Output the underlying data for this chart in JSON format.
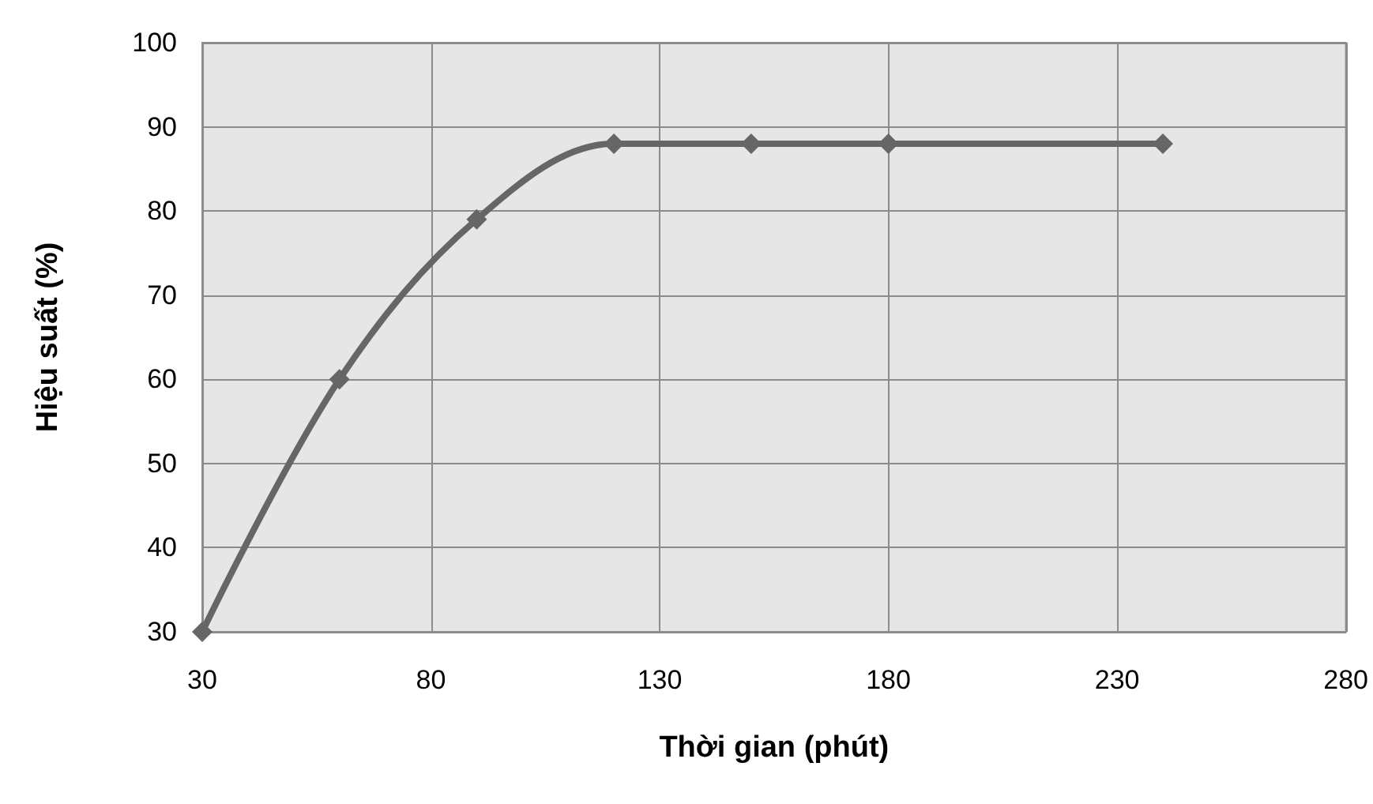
{
  "chart_data": {
    "type": "line",
    "xlabel": "Thời gian (phút)",
    "ylabel": "Hiệu suất (%)",
    "x": [
      30,
      60,
      90,
      120,
      150,
      180,
      240
    ],
    "series": [
      {
        "color": "#666666",
        "values": [
          30,
          60,
          79,
          88,
          88,
          88,
          88
        ]
      }
    ],
    "xlim": [
      30,
      280
    ],
    "xticks": [
      30,
      80,
      130,
      180,
      230,
      280
    ],
    "ylim": [
      30,
      100
    ],
    "yticks": [
      30,
      40,
      50,
      60,
      70,
      80,
      90,
      100
    ],
    "grid": true,
    "marker": "diamond",
    "line_style": "solid"
  }
}
